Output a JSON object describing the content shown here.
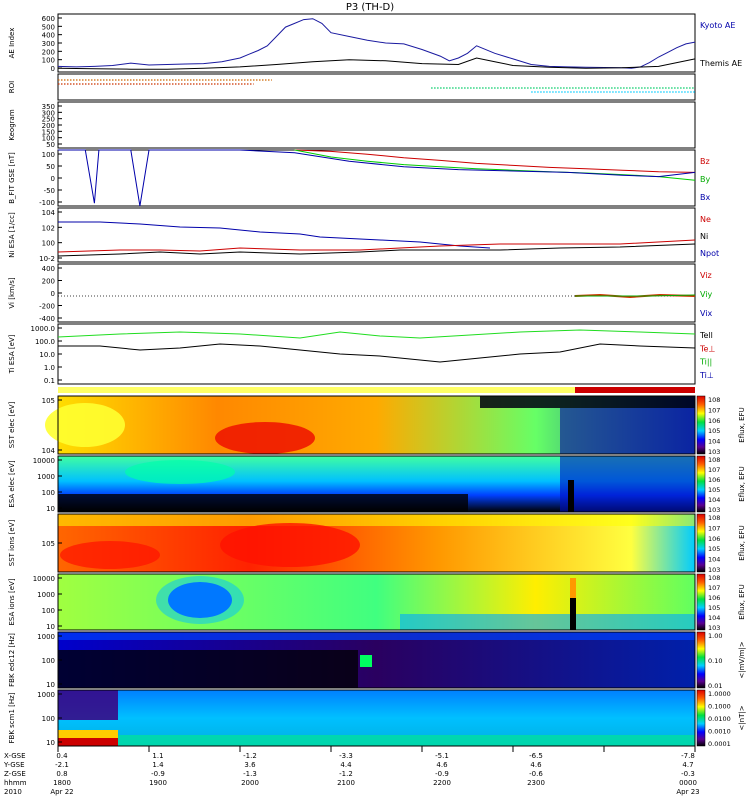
{
  "chart_data": {
    "type": "multi-panel-timeseries",
    "title": "P3 (TH-D)",
    "time_axis": {
      "rows": [
        {
          "label": "X-GSE",
          "values": [
            "0.4",
            "1.1",
            "-1.2",
            "-3.3",
            "-5.1",
            "-6.5",
            "-7.8"
          ]
        },
        {
          "label": "Y-GSE",
          "values": [
            "-2.1",
            "1.4",
            "3.6",
            "4.4",
            "4.6",
            "4.6",
            "4.7"
          ]
        },
        {
          "label": "Z-GSE",
          "values": [
            "0.8",
            "-0.9",
            "-1.3",
            "-1.2",
            "-0.9",
            "-0.6",
            "-0.3"
          ]
        },
        {
          "label": "hhmm",
          "values": [
            "1800",
            "1900",
            "2000",
            "2100",
            "2200",
            "2300",
            "0000"
          ]
        },
        {
          "label": "2010",
          "values": [
            "Apr 22",
            "",
            "",
            "",
            "",
            "",
            "Apr 23"
          ]
        }
      ]
    },
    "panels": [
      {
        "id": "ae",
        "ylabel": "AE Index",
        "yticks": [
          "0",
          "100",
          "200",
          "300",
          "400",
          "500",
          "600"
        ],
        "ylim": [
          0,
          620
        ],
        "legend": [
          {
            "name": "Kyoto AE",
            "color": "#0000aa"
          },
          {
            "name": "Themis AE",
            "color": "#000000"
          }
        ],
        "series": [
          {
            "name": "Kyoto AE",
            "color": "#1a1aa0",
            "x": [
              0,
              20,
              40,
              60,
              80,
              100,
              120,
              140,
              160,
              180,
              200,
              210,
              220,
              230,
              240,
              250,
              260,
              270,
              280,
              290,
              300,
              320,
              340,
              360,
              380,
              400,
              420,
              430,
              440,
              450,
              460,
              480,
              500,
              520,
              540,
              560,
              580,
              600,
              620,
              630,
              640,
              650,
              660,
              670,
              680,
              690,
              700
            ],
            "y": [
              60,
              55,
              60,
              70,
              95,
              75,
              80,
              85,
              90,
              110,
              150,
              190,
              230,
              280,
              380,
              480,
              520,
              560,
              570,
              520,
              420,
              380,
              340,
              310,
              300,
              240,
              170,
              120,
              150,
              200,
              280,
              200,
              140,
              80,
              60,
              55,
              50,
              48,
              45,
              40,
              55,
              100,
              160,
              210,
              260,
              300,
              320
            ]
          },
          {
            "name": "Themis AE",
            "color": "#000000",
            "x": [
              0,
              40,
              80,
              120,
              160,
              200,
              240,
              280,
              320,
              360,
              400,
              440,
              460,
              480,
              500,
              540,
              580,
              620,
              660,
              700
            ],
            "y": [
              40,
              35,
              30,
              30,
              40,
              55,
              80,
              110,
              130,
              120,
              90,
              80,
              150,
              110,
              70,
              50,
              40,
              45,
              60,
              140
            ]
          }
        ]
      },
      {
        "id": "roi",
        "ylabel": "ROI",
        "dotted_lines": [
          {
            "color": "#cc6600",
            "x0": 0,
            "x1": 235
          },
          {
            "color": "#cc3300",
            "x0": 0,
            "x1": 215
          },
          {
            "color": "#00cc66",
            "x0": 410,
            "x1": 700
          },
          {
            "color": "#00ccff",
            "x0": 520,
            "x1": 700
          }
        ]
      },
      {
        "id": "keogram",
        "ylabel": "Keogram",
        "yticks": [
          "50",
          "100",
          "150",
          "200",
          "250",
          "300",
          "350"
        ]
      },
      {
        "id": "bfit",
        "ylabel": "B_FIT GSE [nT]",
        "yticks": [
          "-100",
          "-50",
          "0",
          "50",
          "100"
        ],
        "ylim": [
          -100,
          100
        ],
        "legend": [
          {
            "name": "Bz",
            "color": "#cc0000"
          },
          {
            "name": "By",
            "color": "#00aa00"
          },
          {
            "name": "Bx",
            "color": "#0000aa"
          }
        ],
        "series": [
          {
            "name": "Bz",
            "color": "#cc0000",
            "x": [
              260,
              300,
              340,
              380,
              420,
              460,
              500,
              540,
              580,
              620,
              660,
              700
            ],
            "y": [
              100,
              95,
              85,
              72,
              63,
              52,
              45,
              38,
              33,
              28,
              22,
              20
            ]
          },
          {
            "name": "By",
            "color": "#00cc00",
            "x": [
              260,
              300,
              340,
              380,
              420,
              460,
              500,
              540,
              580,
              620,
              660,
              700
            ],
            "y": [
              100,
              75,
              60,
              48,
              40,
              33,
              28,
              22,
              18,
              12,
              5,
              -8
            ]
          },
          {
            "name": "Bx",
            "color": "#0000aa",
            "x": [
              0,
              30,
              40,
              45,
              50,
              60,
              80,
              90,
              100,
              140,
              200,
              260,
              320,
              380,
              440,
              500,
              560,
              620,
              660,
              700
            ],
            "y": [
              100,
              100,
              -90,
              100,
              100,
              100,
              100,
              -100,
              100,
              100,
              100,
              90,
              60,
              40,
              30,
              25,
              20,
              10,
              5,
              20
            ]
          }
        ]
      },
      {
        "id": "ni",
        "ylabel": "Ni ESA [1/cc]",
        "yticks": [
          "10^-2",
          "10^0",
          "10^2",
          "10^4"
        ],
        "legend": [
          {
            "name": "Ne",
            "color": "#cc0000"
          },
          {
            "name": "Ni",
            "color": "#000000"
          },
          {
            "name": "Npot",
            "color": "#0000aa"
          }
        ]
      },
      {
        "id": "vi",
        "ylabel": "Vi [km/s]",
        "yticks": [
          "-400",
          "-200",
          "0",
          "200",
          "400"
        ],
        "legend": [
          {
            "name": "Viz",
            "color": "#cc0000"
          },
          {
            "name": "Viy",
            "color": "#00aa00"
          },
          {
            "name": "Vix",
            "color": "#0000aa"
          }
        ]
      },
      {
        "id": "ti",
        "ylabel": "Ti ESA [eV]",
        "yticks": [
          "0.1",
          "1.0",
          "10.0",
          "100.0",
          "1000.0"
        ],
        "legend": [
          {
            "name": "Tell",
            "color": "#000000"
          },
          {
            "name": "Te⊥",
            "color": "#cc0000"
          },
          {
            "name": "Ti||",
            "color": "#00aa00"
          },
          {
            "name": "Ti⊥",
            "color": "#0000aa"
          }
        ]
      },
      {
        "id": "sst_e",
        "ylabel": "SST elec [eV]",
        "yticks": [
          "10^4",
          "10^5"
        ],
        "colorbar_label": "Eflux, EFU",
        "colorbar_ticks": [
          "10^3",
          "10^4",
          "10^5",
          "10^6",
          "10^7",
          "10^8"
        ]
      },
      {
        "id": "esa_e",
        "ylabel": "ESA elec [eV]",
        "yticks": [
          "10",
          "100",
          "1000",
          "10000"
        ],
        "colorbar_label": "Eflux, EFU",
        "colorbar_ticks": [
          "10^3",
          "10^4",
          "10^5",
          "10^6",
          "10^7",
          "10^8"
        ]
      },
      {
        "id": "sst_i",
        "ylabel": "SST ions [eV]",
        "yticks": [
          "10^5"
        ],
        "colorbar_label": "Eflux, EFU",
        "colorbar_ticks": [
          "10^3",
          "10^4",
          "10^5",
          "10^6",
          "10^7",
          "10^8"
        ]
      },
      {
        "id": "esa_i",
        "ylabel": "ESA ions [eV]",
        "yticks": [
          "10",
          "100",
          "1000",
          "10000"
        ],
        "colorbar_label": "Eflux, EFU",
        "colorbar_ticks": [
          "10^3",
          "10^4",
          "10^5",
          "10^6",
          "10^7",
          "10^8"
        ]
      },
      {
        "id": "fbk_e",
        "ylabel": "FBK edc12 [Hz]",
        "yticks": [
          "10",
          "100",
          "1000"
        ],
        "colorbar_label": "<|mV/m|>",
        "colorbar_ticks": [
          "0.01",
          "0.10",
          "1.00"
        ]
      },
      {
        "id": "fbk_b",
        "ylabel": "FBK scm1 [Hz]",
        "yticks": [
          "10",
          "100",
          "1000"
        ],
        "colorbar_label": "<|nT|>",
        "colorbar_ticks": [
          "0.0001",
          "0.0010",
          "0.0100",
          "0.1000",
          "1.0000"
        ]
      }
    ]
  }
}
